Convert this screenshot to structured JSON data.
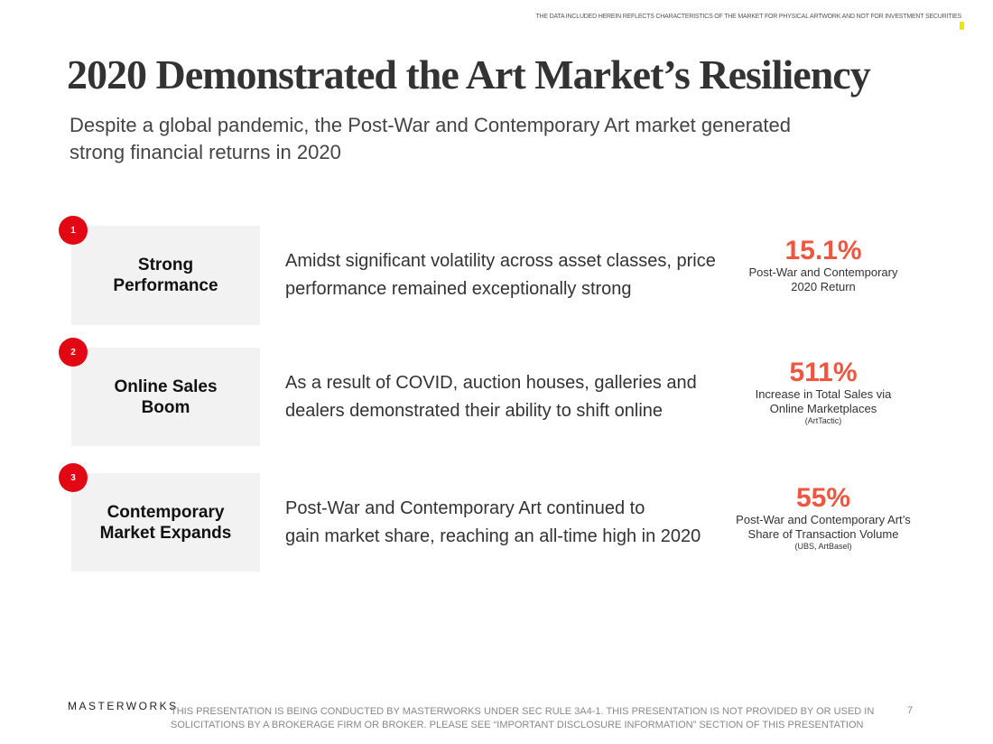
{
  "disclaimer": "THE DATA INCLUDED HEREIN REFLECTS CHARACTERISTICS OF THE MARKET FOR PHYSICAL ARTWORK AND NOT FOR INVESTMENT SECURITIES",
  "title": "2020 Demonstrated the Art Market’s Resiliency",
  "subtitle": [
    "Despite a global pandemic, the Post-War and Contemporary Art market generated",
    "strong financial returns in 2020"
  ],
  "rows": [
    {
      "number": "1",
      "label": [
        "Strong",
        "Performance"
      ],
      "description": [
        "Amidst significant volatility across asset classes, price",
        "performance remained exceptionally strong"
      ],
      "stat": "15.1%",
      "stat_label": [
        "Post-War and Contemporary",
        "2020 Return"
      ]
    },
    {
      "number": "2",
      "label": [
        "Online Sales",
        "Boom"
      ],
      "description": [
        "As a result of COVID, auction houses, galleries and",
        "dealers demonstrated their ability to shift online"
      ],
      "stat": "511%",
      "stat_label": [
        "Increase in Total Sales via",
        "Online Marketplaces"
      ],
      "source": "(ArtTactic)"
    },
    {
      "number": "3",
      "label": [
        "Contemporary",
        "Market Expands"
      ],
      "description": [
        "Post-War and Contemporary Art continued to",
        "gain market share, reaching an all-time high in 2020"
      ],
      "stat": "55%",
      "stat_label": [
        "Post-War and Contemporary Art’s",
        "Share of Transaction Volume"
      ],
      "source": "(UBS, ArtBasel)"
    }
  ],
  "footer": {
    "logo": "MASTERWORKS",
    "text": "THIS PRESENTATION  IS BEING CONDUCTED BY MASTERWORKS UNDER SEC RULE 3A4-1. THIS PRESENTATION  IS NOT PROVIDED BY OR USED IN SOLICITATIONS BY A BROKERAGE FIRM OR BROKER. PLEASE SEE “IMPORTANT DISCLOSURE INFORMATION” SECTION OF THIS PRESENTATION",
    "page": "7"
  }
}
